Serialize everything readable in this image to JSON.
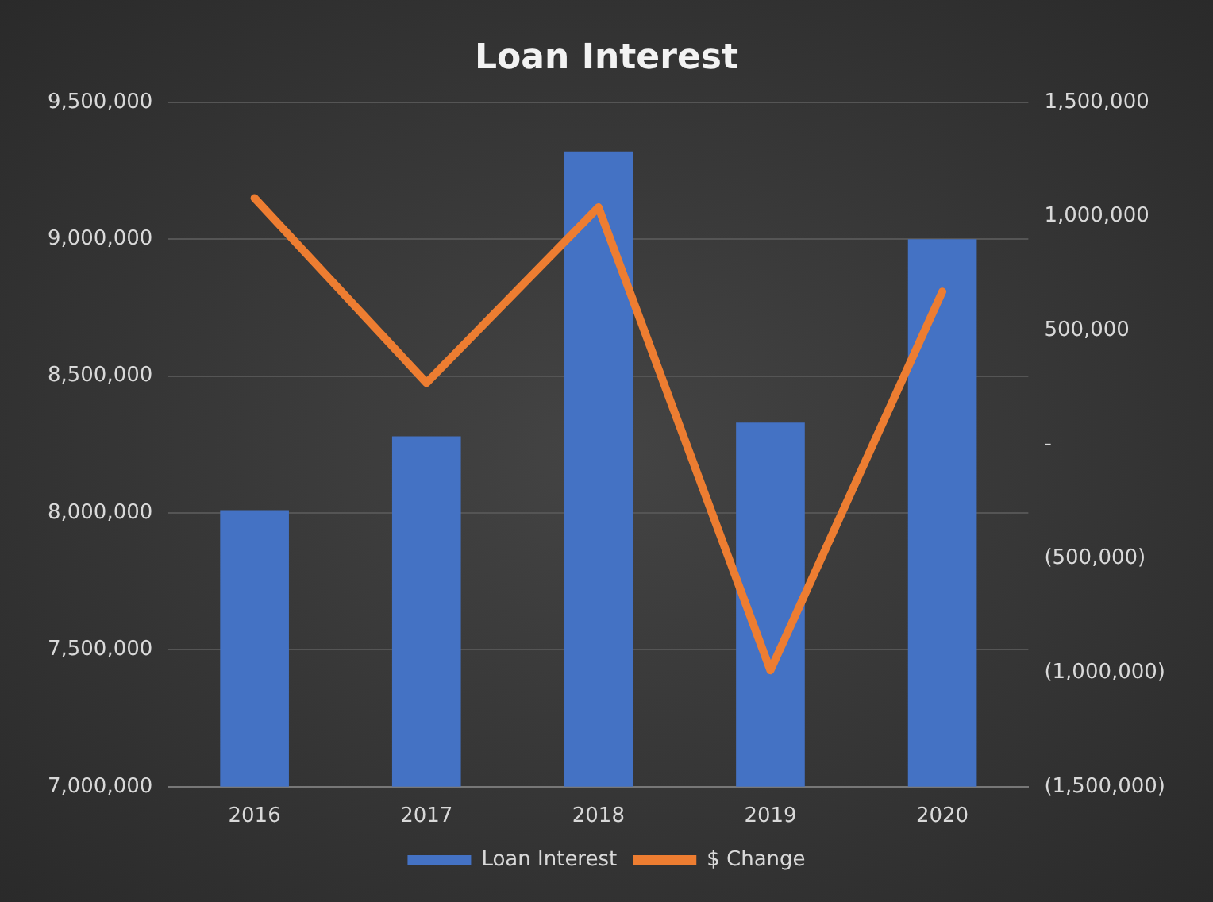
{
  "chart_data": {
    "type": "bar",
    "title": "Loan Interest",
    "categories": [
      "2016",
      "2017",
      "2018",
      "2019",
      "2020"
    ],
    "series": [
      {
        "name": "Loan Interest",
        "color": "#4472c4",
        "values": [
          8010000,
          8280000,
          9320000,
          8330000,
          9000000
        ]
      },
      {
        "name": "$ Change",
        "type": "line",
        "axis": "y2",
        "color": "#ed7d31",
        "values": [
          1080000,
          270000,
          1040000,
          -990000,
          670000
        ]
      }
    ],
    "ylim": [
      7000000,
      9500000
    ],
    "yticks": [
      {
        "value": 7000000,
        "label": "7,000,000"
      },
      {
        "value": 7500000,
        "label": "7,500,000"
      },
      {
        "value": 8000000,
        "label": "8,000,000"
      },
      {
        "value": 8500000,
        "label": "8,500,000"
      },
      {
        "value": 9000000,
        "label": "9,000,000"
      },
      {
        "value": 9500000,
        "label": "9,500,000"
      }
    ],
    "y2lim": [
      -1500000,
      1500000
    ],
    "y2ticks": [
      {
        "value": -1500000,
        "label": "(1,500,000)"
      },
      {
        "value": -1000000,
        "label": "(1,000,000)"
      },
      {
        "value": -500000,
        "label": "(500,000)"
      },
      {
        "value": 0,
        "label": "-"
      },
      {
        "value": 500000,
        "label": "500,000"
      },
      {
        "value": 1000000,
        "label": "1,000,000"
      },
      {
        "value": 1500000,
        "label": "1,500,000"
      }
    ],
    "grid": "y",
    "legend": "bottom",
    "marker": "none"
  }
}
